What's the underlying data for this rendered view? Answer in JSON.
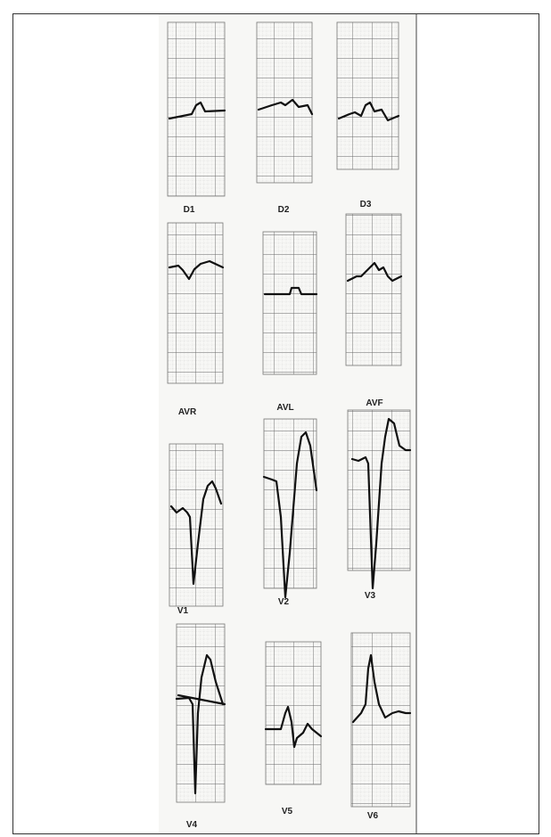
{
  "leads": [
    "D1",
    "D2",
    "D3",
    "AVR",
    "AVL",
    "AVF",
    "V1",
    "V2",
    "V3",
    "V4",
    "V5",
    "V6"
  ]
}
